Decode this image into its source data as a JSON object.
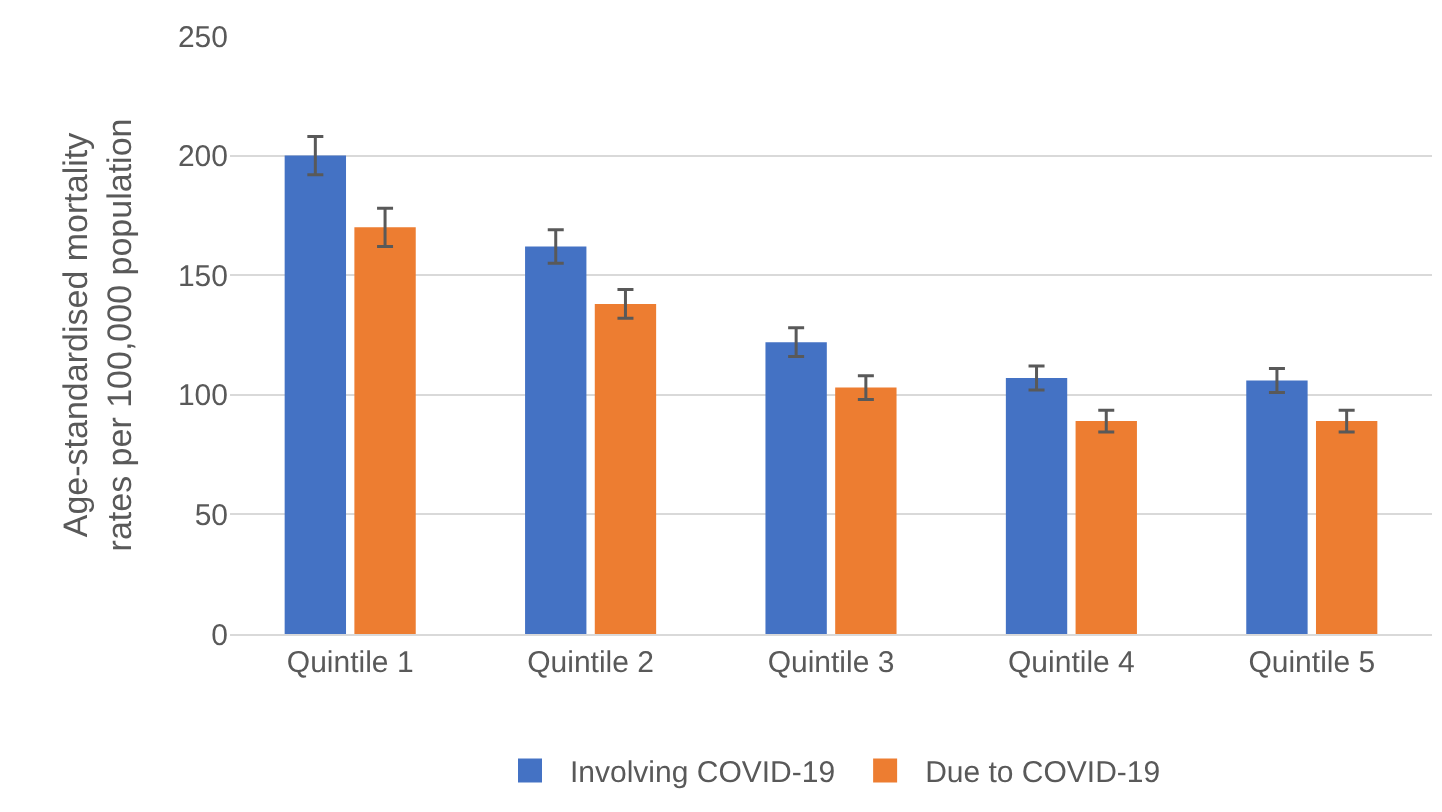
{
  "chart_data": {
    "type": "bar",
    "ylabel": "Age-standardised mortality rates per 100,000 population",
    "categories": [
      "Quintile 1",
      "Quintile 2",
      "Quintile 3",
      "Quintile 4",
      "Quintile 5"
    ],
    "series": [
      {
        "name": "Involving COVID-19",
        "color": "#4472c4",
        "values": [
          200,
          162,
          122,
          107,
          106
        ],
        "errors": [
          8,
          7,
          6,
          5,
          5
        ]
      },
      {
        "name": "Due to COVID-19",
        "color": "#ed7d31",
        "values": [
          170,
          138,
          103,
          89,
          89
        ],
        "errors": [
          8,
          6,
          5,
          4.5,
          4.5
        ]
      }
    ],
    "ylim": [
      0,
      250
    ],
    "yticks": [
      0,
      50,
      100,
      150,
      200,
      250
    ],
    "grid": "y",
    "legend": "bottom"
  }
}
